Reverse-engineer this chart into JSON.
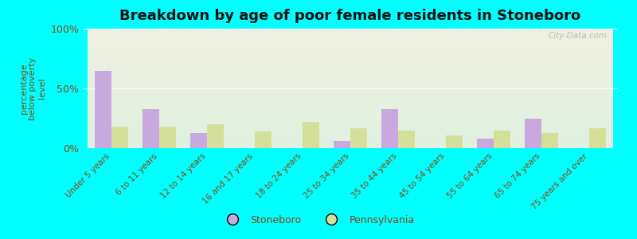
{
  "title": "Breakdown by age of poor female residents in Stoneboro",
  "ylabel": "percentage\nbelow poverty\nlevel",
  "categories": [
    "Under 5 years",
    "6 to 11 years",
    "12 to 14 years",
    "16 and 17 years",
    "18 to 24 years",
    "25 to 34 years",
    "35 to 44 years",
    "45 to 54 years",
    "55 to 64 years",
    "65 to 74 years",
    "75 years and over"
  ],
  "stoneboro": [
    65,
    33,
    13,
    0,
    0,
    6,
    33,
    0,
    8,
    25,
    0
  ],
  "pennsylvania": [
    18,
    18,
    20,
    14,
    22,
    17,
    15,
    11,
    15,
    13,
    17
  ],
  "stoneboro_color": "#c9a8e0",
  "pennsylvania_color": "#d4e09a",
  "background_color": "#00ffff",
  "plot_bg_top": "#f0f0e0",
  "plot_bg_bottom": "#e0f0e0",
  "title_color": "#111111",
  "axis_label_color": "#8b4513",
  "tick_label_color": "#8b4513",
  "ylim": [
    0,
    100
  ],
  "yticks": [
    0,
    50,
    100
  ],
  "ytick_labels": [
    "0%",
    "50%",
    "100%"
  ],
  "bar_width": 0.35,
  "title_fontsize": 13,
  "legend_stoneboro": "Stoneboro",
  "legend_pennsylvania": "Pennsylvania"
}
